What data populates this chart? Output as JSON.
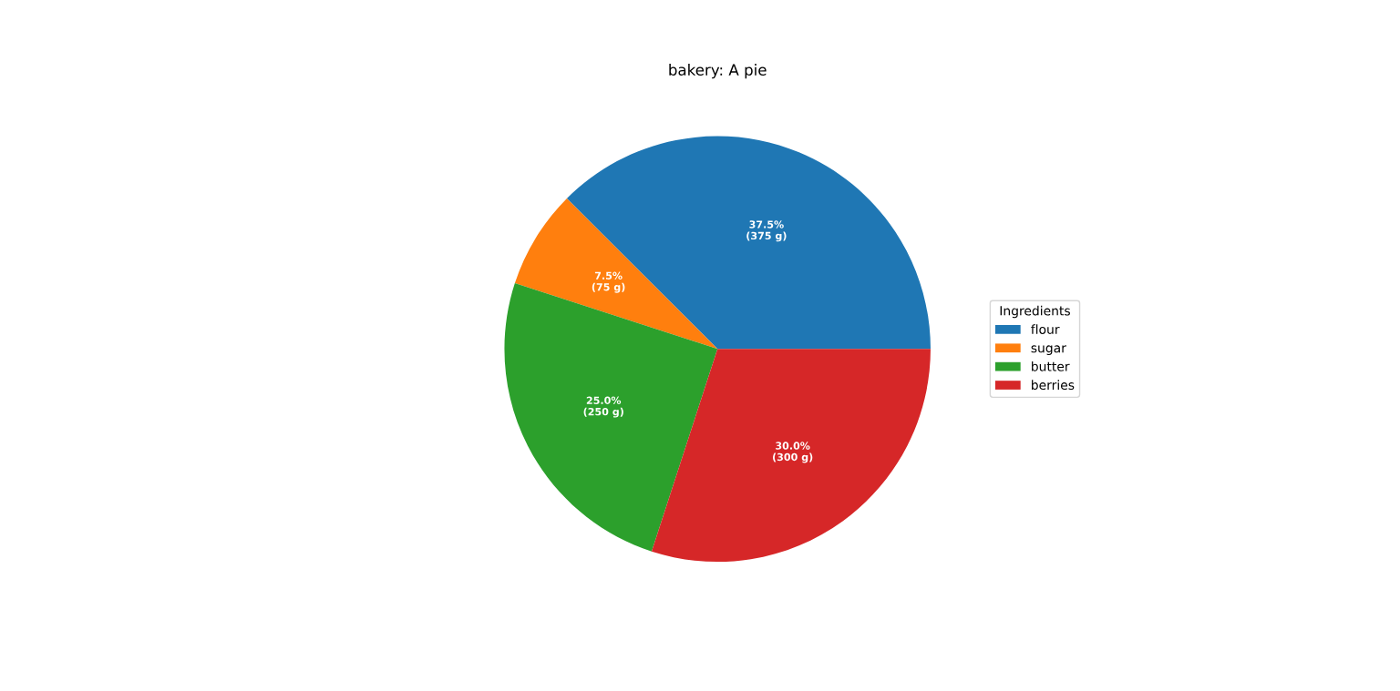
{
  "chart_data": {
    "type": "pie",
    "title": "bakery: A pie",
    "legend_title": "Ingredients",
    "legend": "right",
    "categories": [
      "flour",
      "sugar",
      "butter",
      "berries"
    ],
    "values": [
      375,
      75,
      250,
      300
    ],
    "colors": [
      "#1f77b4",
      "#ff7f0e",
      "#2ca02c",
      "#d62728"
    ],
    "value_labels": [
      "37.5%\n(375 g)",
      "7.5%\n(75 g)",
      "25.0%\n(250 g)",
      "30.0%\n(300 g)"
    ]
  }
}
